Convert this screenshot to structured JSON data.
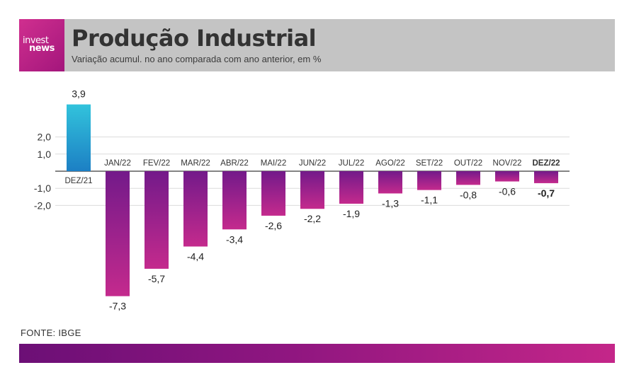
{
  "header": {
    "logo_line1": "invest",
    "logo_line2": "news",
    "title": "Produção Industrial",
    "subtitle": "Variação acumul. no ano comparada com ano anterior, em %"
  },
  "source": "FONTE: IBGE",
  "colors": {
    "positive_bar_top": "#32c3dc",
    "positive_bar_bottom": "#1c7fc4",
    "negative_bar_top": "#731a8a",
    "negative_bar_bottom": "#c42a8d",
    "header_bg": "#c4c4c4",
    "accent": "#c42689"
  },
  "chart_data": {
    "type": "bar",
    "title": "Produção Industrial",
    "subtitle": "Variação acumul. no ano comparada com ano anterior, em %",
    "categories": [
      "DEZ/21",
      "JAN/22",
      "FEV/22",
      "MAR/22",
      "ABR/22",
      "MAI/22",
      "JUN/22",
      "JUL/22",
      "AGO/22",
      "SET/22",
      "OUT/22",
      "NOV/22",
      "DEZ/22"
    ],
    "values": [
      3.9,
      -7.3,
      -5.7,
      -4.4,
      -3.4,
      -2.6,
      -2.2,
      -1.9,
      -1.3,
      -1.1,
      -0.8,
      -0.6,
      -0.7
    ],
    "value_labels": [
      "3,9",
      "-7,3",
      "-5,7",
      "-4,4",
      "-3,4",
      "-2,6",
      "-2,2",
      "-1,9",
      "-1,3",
      "-1,1",
      "-0,8",
      "-0,6",
      "-0,7"
    ],
    "highlight_category": "DEZ/22",
    "y_ticks": [
      2.0,
      1.0,
      -1.0,
      -2.0
    ],
    "y_tick_labels": [
      "2,0",
      "1,0",
      "-1,0",
      "-2,0"
    ],
    "ylim": [
      -8,
      4.5
    ],
    "grid": true,
    "xlabel": "",
    "ylabel": ""
  }
}
